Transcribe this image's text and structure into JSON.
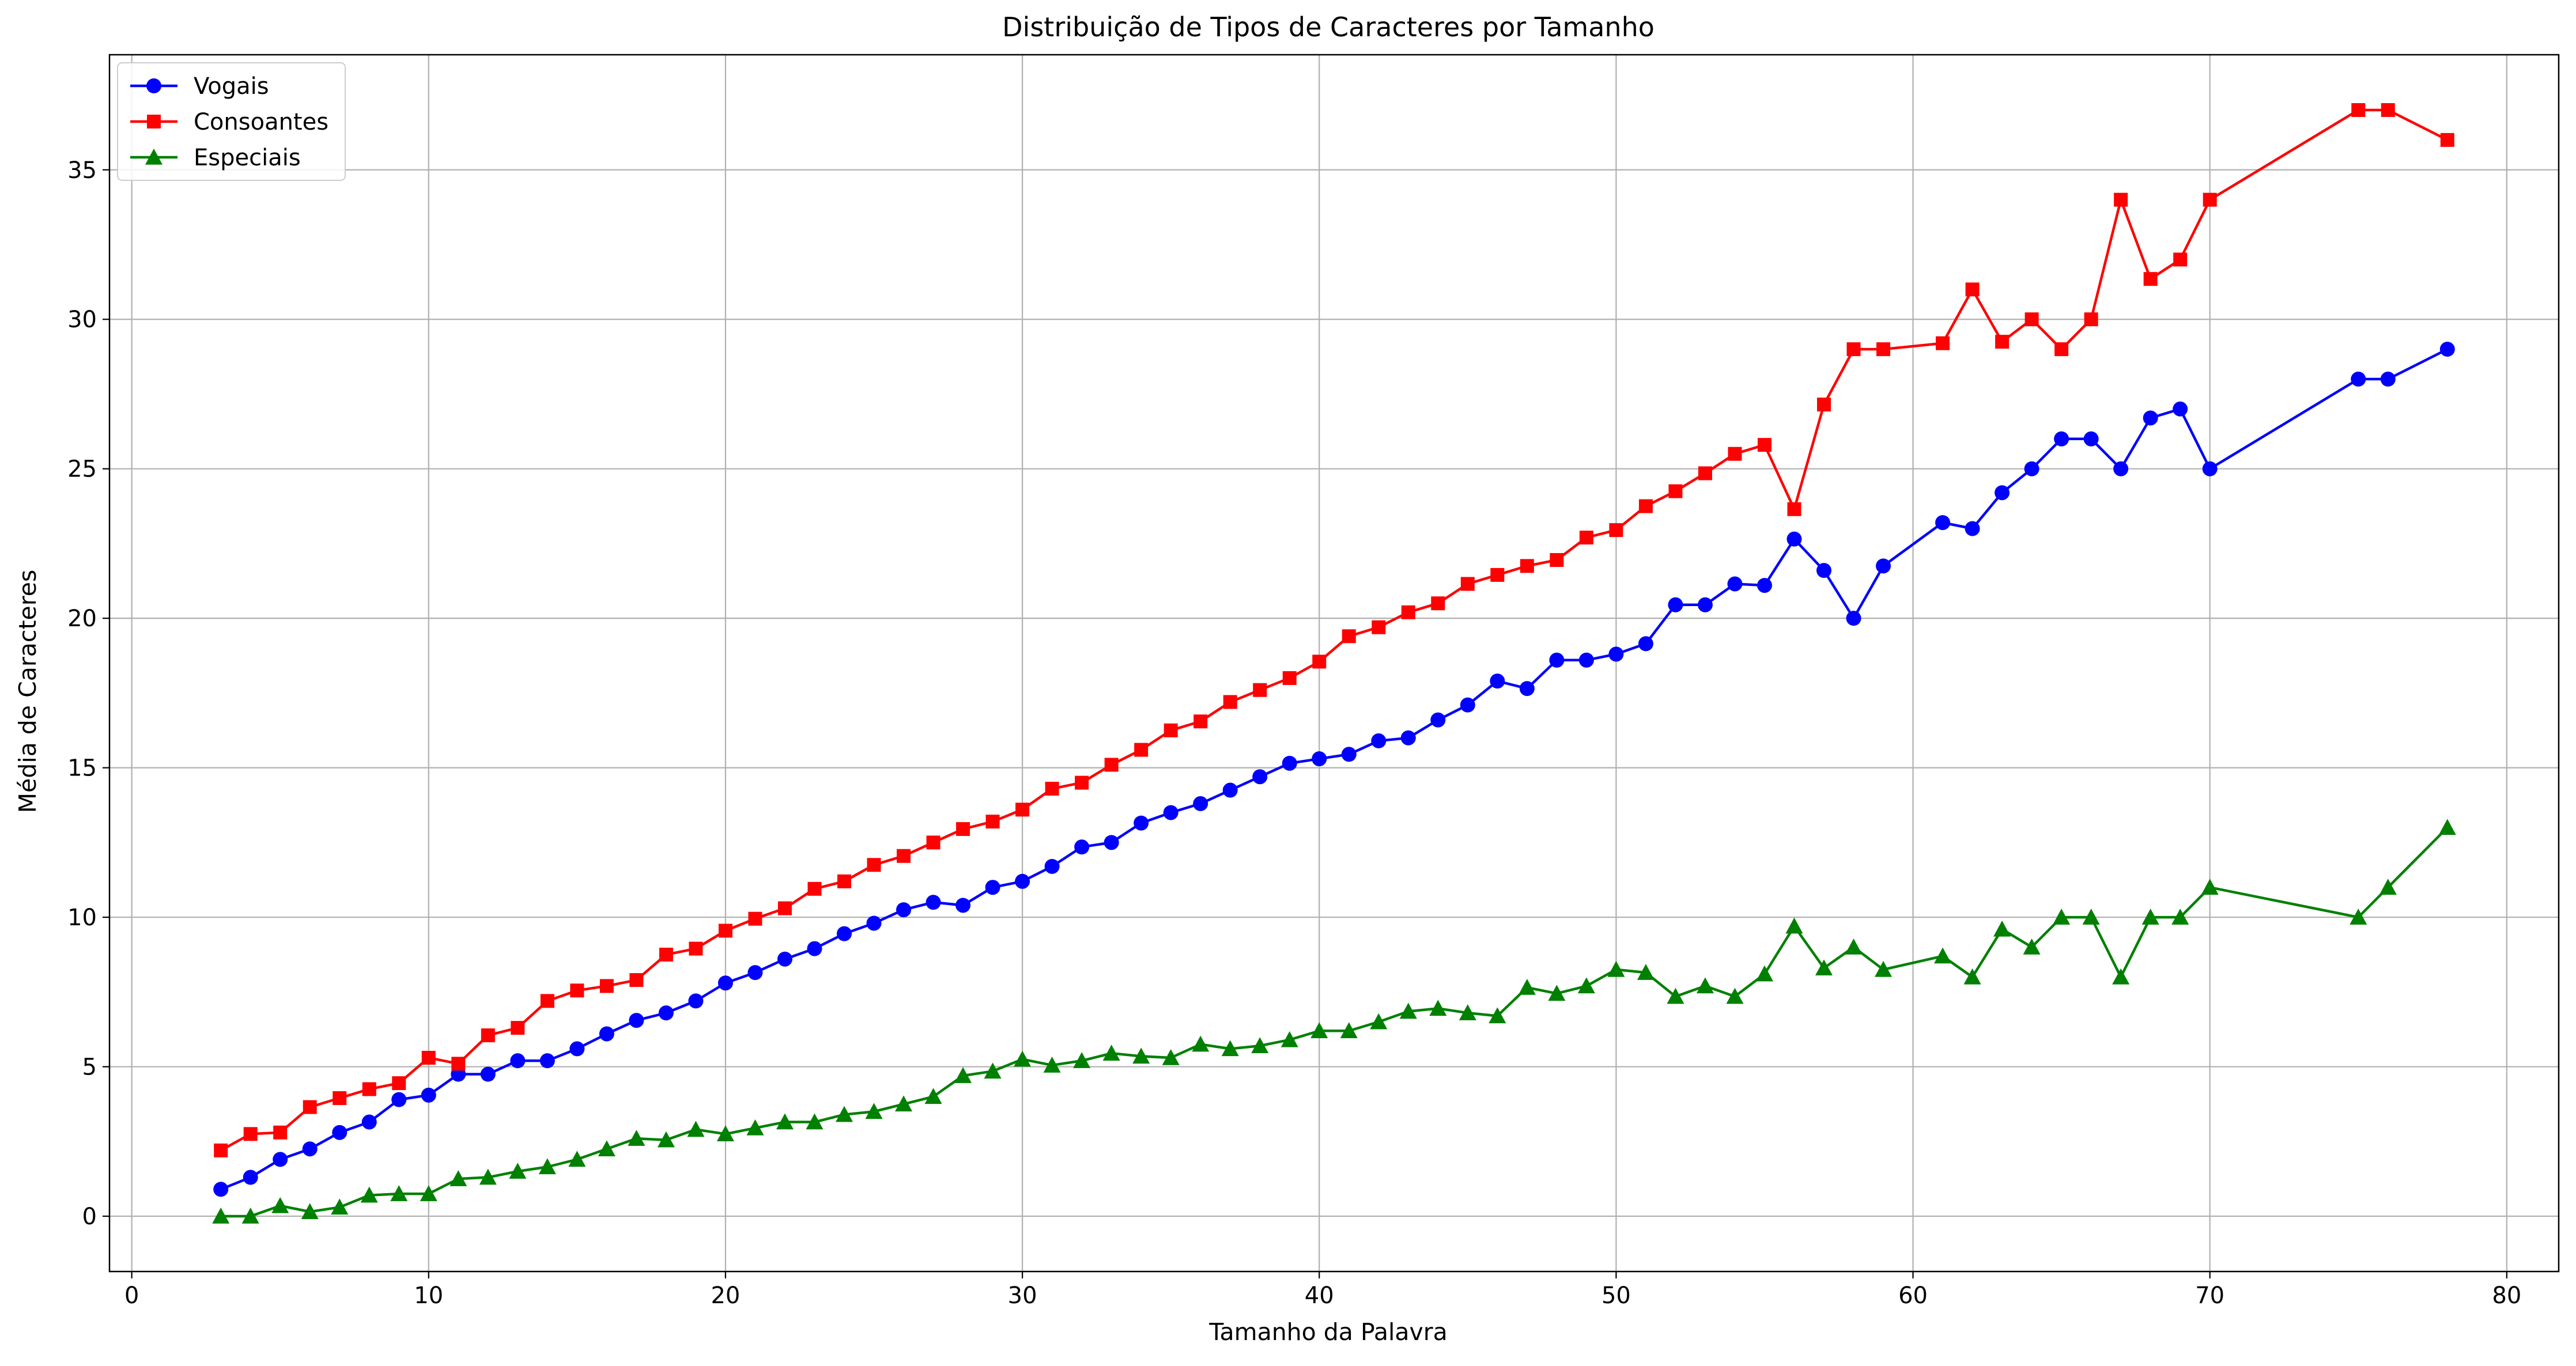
{
  "chart_data": {
    "type": "line",
    "title": "Distribuição de Tipos de Caracteres por Tamanho",
    "xlabel": "Tamanho da Palavra",
    "ylabel": "Média de Caracteres",
    "xlim": [
      -0.75,
      81.75
    ],
    "ylim": [
      -1.85,
      38.85
    ],
    "xticks": [
      0,
      10,
      20,
      30,
      40,
      50,
      60,
      70,
      80
    ],
    "yticks": [
      0,
      5,
      10,
      15,
      20,
      25,
      30,
      35
    ],
    "grid": true,
    "legend_position": "top-left",
    "x": [
      3,
      4,
      5,
      6,
      7,
      8,
      9,
      10,
      11,
      12,
      13,
      14,
      15,
      16,
      17,
      18,
      19,
      20,
      21,
      22,
      23,
      24,
      25,
      26,
      27,
      28,
      29,
      30,
      31,
      32,
      33,
      34,
      35,
      36,
      37,
      38,
      39,
      40,
      41,
      42,
      43,
      44,
      45,
      46,
      47,
      48,
      49,
      50,
      51,
      52,
      53,
      54,
      55,
      56,
      57,
      58,
      59,
      61,
      62,
      63,
      64,
      65,
      66,
      67,
      68,
      69,
      70,
      75,
      76,
      78
    ],
    "series": [
      {
        "name": "Vogais",
        "color": "#0000ff",
        "marker": "circle",
        "values": [
          0.9,
          1.3,
          1.9,
          2.25,
          2.8,
          3.15,
          3.9,
          4.05,
          4.75,
          4.75,
          5.2,
          5.2,
          5.6,
          6.1,
          6.55,
          6.8,
          7.2,
          7.8,
          8.15,
          8.6,
          8.95,
          9.45,
          9.8,
          10.25,
          10.5,
          10.4,
          11.0,
          11.2,
          11.7,
          12.35,
          12.5,
          13.15,
          13.5,
          13.8,
          14.25,
          14.7,
          15.15,
          15.3,
          15.45,
          15.9,
          16.0,
          16.6,
          17.1,
          17.9,
          17.65,
          18.6,
          18.6,
          18.8,
          19.15,
          20.45,
          20.45,
          21.15,
          21.1,
          22.65,
          21.6,
          20.0,
          21.75,
          23.2,
          23.0,
          24.2,
          25.0,
          26.0,
          26.0,
          25.0,
          26.7,
          27.0,
          25.0,
          28.0,
          28.0,
          29.0
        ]
      },
      {
        "name": "Consoantes",
        "color": "#ff0000",
        "marker": "square",
        "values": [
          2.2,
          2.75,
          2.8,
          3.65,
          3.95,
          4.25,
          4.45,
          5.3,
          5.1,
          6.05,
          6.3,
          7.2,
          7.55,
          7.7,
          7.9,
          8.75,
          8.95,
          9.55,
          9.95,
          10.3,
          10.95,
          11.2,
          11.75,
          12.05,
          12.5,
          12.95,
          13.2,
          13.6,
          14.3,
          14.5,
          15.1,
          15.6,
          16.25,
          16.55,
          17.2,
          17.6,
          18.0,
          18.55,
          19.4,
          19.7,
          20.2,
          20.5,
          21.15,
          21.45,
          21.75,
          21.95,
          22.7,
          22.95,
          23.75,
          24.25,
          24.85,
          25.5,
          25.8,
          23.65,
          27.15,
          29.0,
          29.0,
          29.2,
          31.0,
          29.25,
          30.0,
          29.0,
          30.0,
          34.0,
          31.35,
          32.0,
          34.0,
          37.0,
          37.0,
          36.0
        ]
      },
      {
        "name": "Especiais",
        "color": "#008000",
        "marker": "triangle",
        "values": [
          0.0,
          0.0,
          0.35,
          0.15,
          0.3,
          0.7,
          0.75,
          0.75,
          1.25,
          1.3,
          1.5,
          1.65,
          1.9,
          2.25,
          2.6,
          2.55,
          2.9,
          2.75,
          2.95,
          3.15,
          3.15,
          3.4,
          3.5,
          3.75,
          4.0,
          4.7,
          4.85,
          5.25,
          5.05,
          5.2,
          5.45,
          5.35,
          5.3,
          5.75,
          5.6,
          5.7,
          5.9,
          6.2,
          6.2,
          6.5,
          6.85,
          6.95,
          6.8,
          6.7,
          7.65,
          7.45,
          7.7,
          8.25,
          8.15,
          7.35,
          7.7,
          7.35,
          8.1,
          9.7,
          8.3,
          9.0,
          8.25,
          8.7,
          8.0,
          9.6,
          9.0,
          10.0,
          10.0,
          8.0,
          10.0,
          10.0,
          11.0,
          10.0,
          11.0,
          13.0
        ]
      }
    ]
  }
}
